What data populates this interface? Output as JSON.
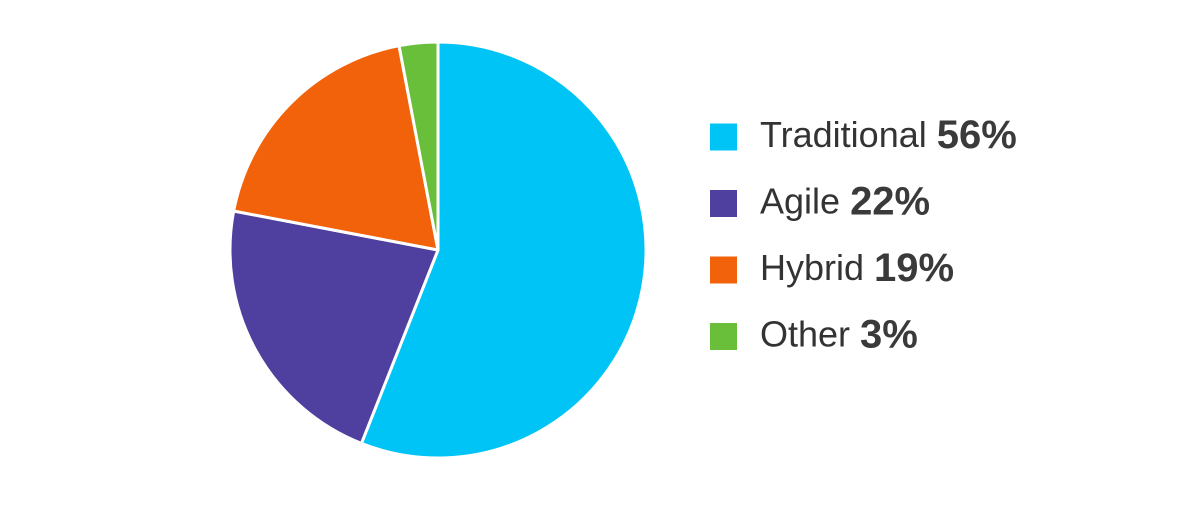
{
  "chart_data": {
    "type": "pie",
    "categories": [
      "Traditional",
      "Agile",
      "Hybrid",
      "Other"
    ],
    "values": [
      56,
      22,
      19,
      3
    ],
    "value_labels": [
      "56%",
      "22%",
      "19%",
      "3%"
    ],
    "colors": [
      "#00c4f5",
      "#4f3f9e",
      "#f2620a",
      "#6abf3a"
    ]
  }
}
